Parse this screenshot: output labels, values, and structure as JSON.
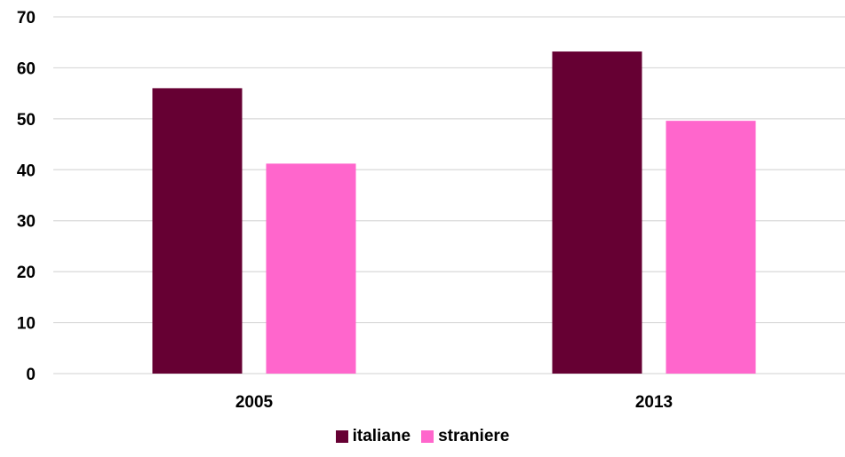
{
  "chart_data": {
    "type": "bar",
    "categories": [
      "2005",
      "2013"
    ],
    "series": [
      {
        "name": "italiane",
        "values": [
          56,
          63.2
        ],
        "color": "#660033"
      },
      {
        "name": "straniere",
        "values": [
          41.2,
          49.6
        ],
        "color": "#FF66CC"
      }
    ],
    "ylim": [
      0,
      70
    ],
    "yticks": [
      0,
      10,
      20,
      30,
      40,
      50,
      60,
      70
    ],
    "grid": true,
    "legend": "bottom-center"
  }
}
